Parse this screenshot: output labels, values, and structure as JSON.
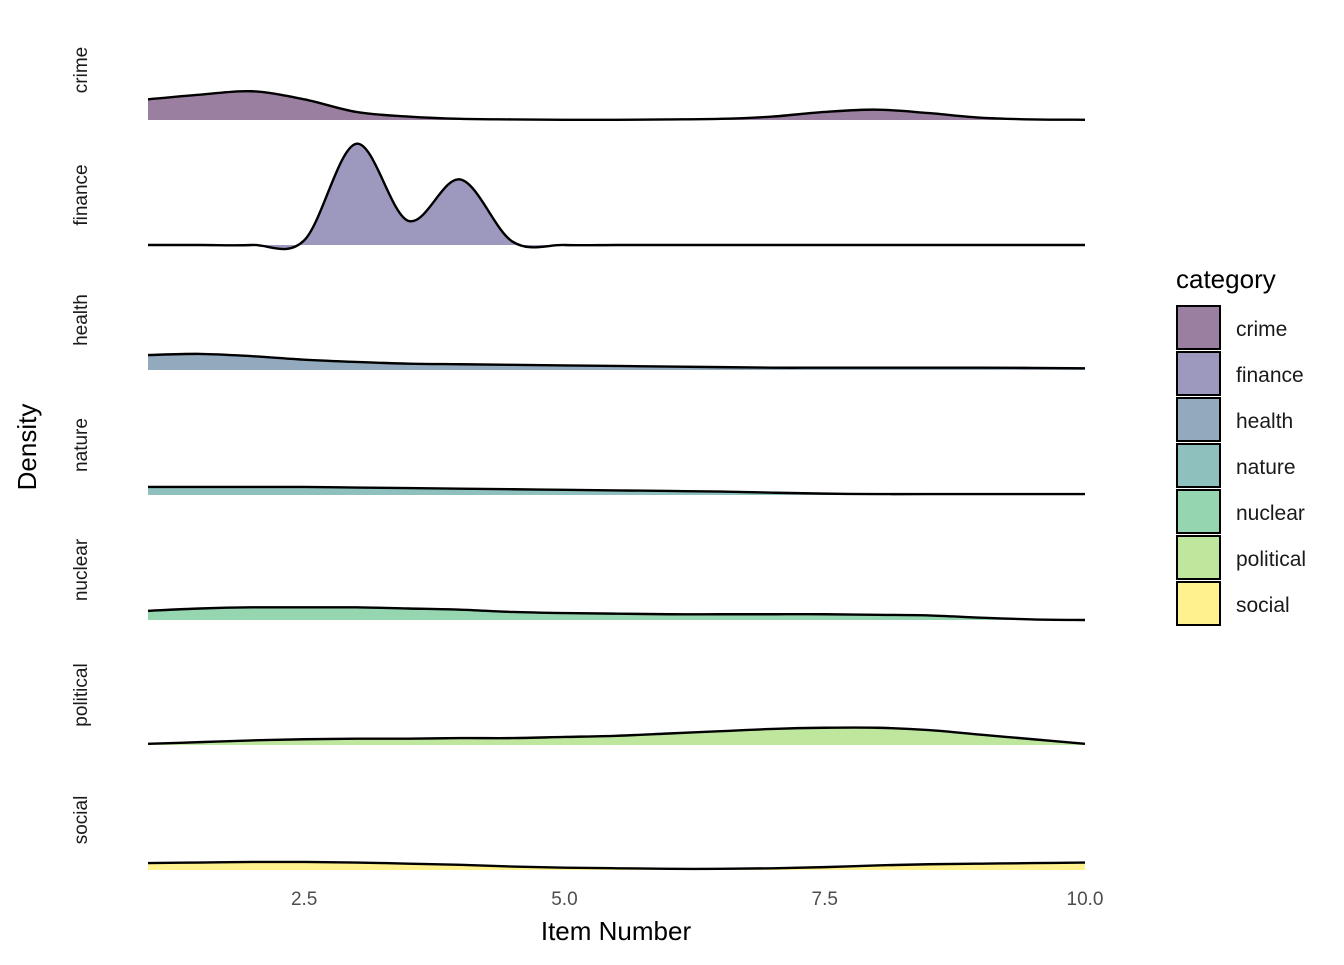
{
  "chart_data": {
    "type": "area",
    "subtype": "ridgeline-density",
    "title": "",
    "xlabel": "Item Number",
    "ylabel": "Density",
    "xlim": [
      1,
      10
    ],
    "x_ticks": [
      2.5,
      5.0,
      7.5,
      10.0
    ],
    "x_tick_labels": [
      "2.5",
      "5.0",
      "7.5",
      "10.0"
    ],
    "grid": false,
    "legend": {
      "title": "category",
      "placement": "right"
    },
    "x": [
      1.0,
      1.5,
      2.0,
      2.5,
      3.0,
      3.5,
      4.0,
      4.5,
      5.0,
      5.5,
      6.0,
      6.5,
      7.0,
      7.5,
      8.0,
      8.5,
      9.0,
      9.5,
      10.0
    ],
    "series": [
      {
        "name": "crime",
        "color": "#9b7fa0",
        "values": [
          0.18,
          0.22,
          0.25,
          0.18,
          0.07,
          0.03,
          0.01,
          0.005,
          0.002,
          0.002,
          0.005,
          0.01,
          0.03,
          0.07,
          0.09,
          0.06,
          0.02,
          0.005,
          0.002
        ]
      },
      {
        "name": "finance",
        "color": "#9d98bd",
        "values": [
          0.0,
          0.0,
          0.0,
          0.04,
          0.88,
          0.21,
          0.57,
          0.03,
          0.0,
          0.0,
          0.0,
          0.0,
          0.0,
          0.0,
          0.0,
          0.0,
          0.0,
          0.0,
          0.0
        ]
      },
      {
        "name": "health",
        "color": "#92a9be",
        "values": [
          0.13,
          0.14,
          0.12,
          0.09,
          0.07,
          0.055,
          0.05,
          0.045,
          0.04,
          0.035,
          0.03,
          0.025,
          0.02,
          0.02,
          0.02,
          0.02,
          0.02,
          0.018,
          0.015
        ]
      },
      {
        "name": "nature",
        "color": "#8ec1bd",
        "values": [
          0.07,
          0.07,
          0.07,
          0.07,
          0.065,
          0.06,
          0.055,
          0.05,
          0.045,
          0.04,
          0.035,
          0.03,
          0.02,
          0.012,
          0.008,
          0.008,
          0.008,
          0.008,
          0.008
        ]
      },
      {
        "name": "nuclear",
        "color": "#95d6b1",
        "values": [
          0.08,
          0.1,
          0.11,
          0.11,
          0.11,
          0.1,
          0.09,
          0.07,
          0.06,
          0.055,
          0.05,
          0.05,
          0.05,
          0.05,
          0.045,
          0.04,
          0.02,
          0.005,
          0.0
        ]
      },
      {
        "name": "political",
        "color": "#bee69c",
        "values": [
          0.01,
          0.025,
          0.04,
          0.05,
          0.055,
          0.055,
          0.06,
          0.06,
          0.07,
          0.08,
          0.1,
          0.12,
          0.14,
          0.15,
          0.15,
          0.13,
          0.09,
          0.05,
          0.01
        ]
      },
      {
        "name": "social",
        "color": "#fff18d",
        "values": [
          0.06,
          0.065,
          0.07,
          0.07,
          0.065,
          0.055,
          0.045,
          0.03,
          0.02,
          0.015,
          0.01,
          0.01,
          0.015,
          0.025,
          0.04,
          0.05,
          0.055,
          0.06,
          0.065
        ]
      }
    ]
  }
}
